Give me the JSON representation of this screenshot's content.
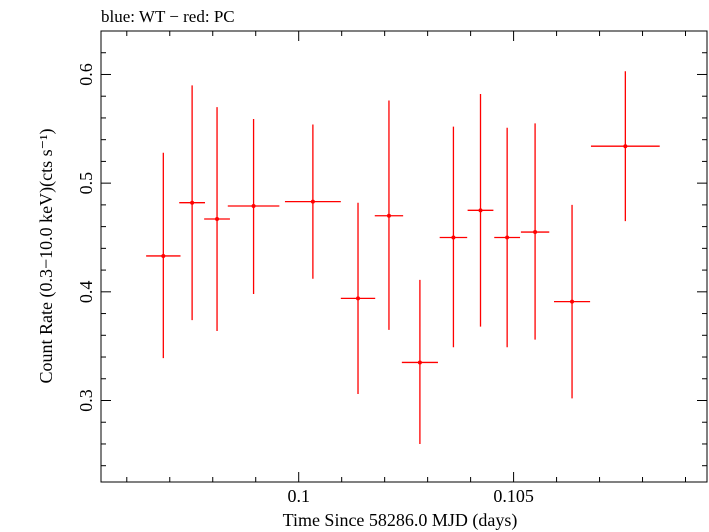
{
  "chart_data": {
    "type": "scatter",
    "title": "blue: WT − red: PC",
    "xlabel": "Time Since 58286.0 MJD (days)",
    "ylabel": "Count Rate (0.3−10.0 keV)(cts s⁻¹)",
    "xlim": [
      0.0954,
      0.1095
    ],
    "ylim": [
      0.225,
      0.64
    ],
    "x_major_ticks": [
      0.1,
      0.105
    ],
    "x_tick_labels": [
      "0.1",
      "0.105"
    ],
    "x_minor_step": 0.001,
    "y_major_ticks": [
      0.3,
      0.4,
      0.5,
      0.6
    ],
    "y_tick_labels": [
      "0.3",
      "0.4",
      "0.5",
      "0.6"
    ],
    "y_minor_step": 0.02,
    "grid": false,
    "series": [
      {
        "name": "PC",
        "color": "#ff0000",
        "points": [
          {
            "x": 0.09685,
            "xerr": 0.0004,
            "y": 0.433,
            "ylo": 0.339,
            "yhi": 0.528
          },
          {
            "x": 0.09752,
            "xerr": 0.0003,
            "y": 0.482,
            "ylo": 0.374,
            "yhi": 0.59
          },
          {
            "x": 0.0981,
            "xerr": 0.0003,
            "y": 0.467,
            "ylo": 0.364,
            "yhi": 0.57
          },
          {
            "x": 0.09895,
            "xerr": 0.0006,
            "y": 0.479,
            "ylo": 0.398,
            "yhi": 0.559
          },
          {
            "x": 0.10033,
            "xerr": 0.00065,
            "y": 0.483,
            "ylo": 0.412,
            "yhi": 0.554
          },
          {
            "x": 0.10138,
            "xerr": 0.0004,
            "y": 0.394,
            "ylo": 0.306,
            "yhi": 0.482
          },
          {
            "x": 0.1021,
            "xerr": 0.00033,
            "y": 0.47,
            "ylo": 0.365,
            "yhi": 0.576
          },
          {
            "x": 0.10282,
            "xerr": 0.00042,
            "y": 0.335,
            "ylo": 0.26,
            "yhi": 0.411
          },
          {
            "x": 0.1036,
            "xerr": 0.00032,
            "y": 0.45,
            "ylo": 0.349,
            "yhi": 0.552
          },
          {
            "x": 0.10423,
            "xerr": 0.0003,
            "y": 0.475,
            "ylo": 0.368,
            "yhi": 0.582
          },
          {
            "x": 0.10485,
            "xerr": 0.0003,
            "y": 0.45,
            "ylo": 0.349,
            "yhi": 0.551
          },
          {
            "x": 0.1055,
            "xerr": 0.00033,
            "y": 0.455,
            "ylo": 0.356,
            "yhi": 0.555
          },
          {
            "x": 0.10636,
            "xerr": 0.00042,
            "y": 0.391,
            "ylo": 0.302,
            "yhi": 0.48
          },
          {
            "x": 0.1076,
            "xerr": 0.0008,
            "y": 0.534,
            "ylo": 0.465,
            "yhi": 0.603
          }
        ]
      }
    ]
  }
}
